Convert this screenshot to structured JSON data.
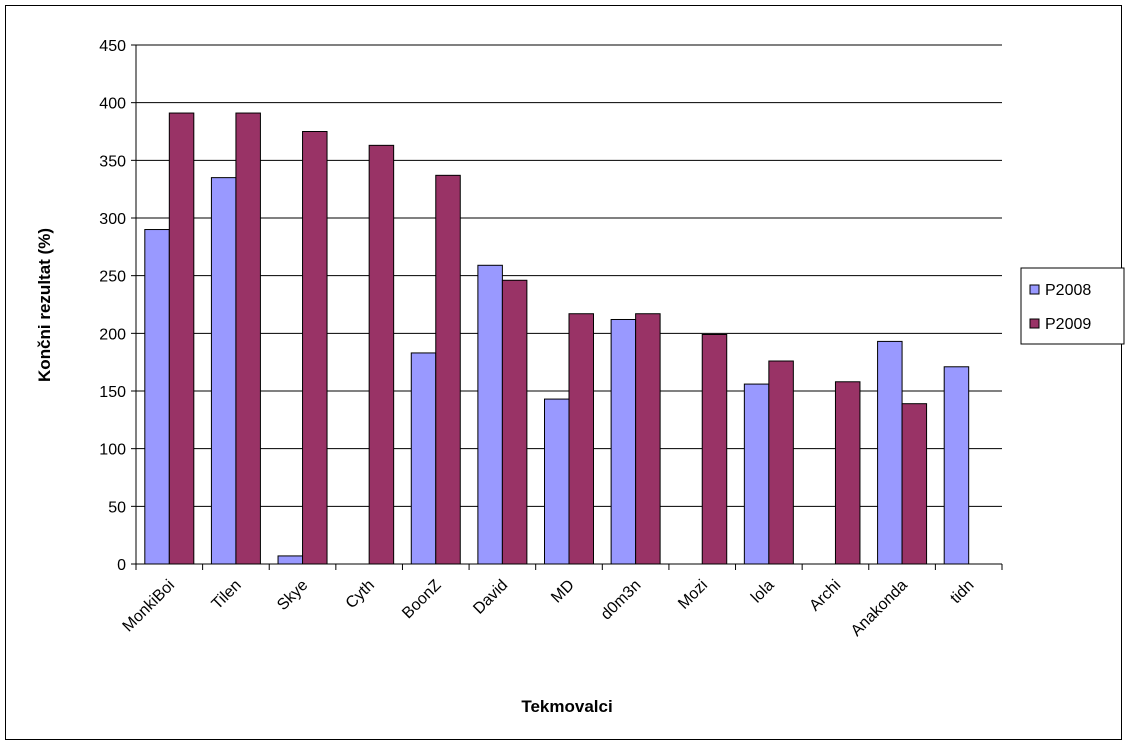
{
  "chart_data": {
    "type": "bar",
    "title": "",
    "xlabel": "Tekmovalci",
    "ylabel": "Končni rezultat (%)",
    "ylim": [
      0,
      450
    ],
    "yticks": [
      0,
      50,
      100,
      150,
      200,
      250,
      300,
      350,
      400,
      450
    ],
    "grid": true,
    "legend_position": "right",
    "categories": [
      "MonkiBoi",
      "Tilen",
      "Skye",
      "Cyth",
      "BoonZ",
      "David",
      "MD",
      "d0m3n",
      "Mozi",
      "lola",
      "Archi",
      "Anakonda",
      "tidn"
    ],
    "series": [
      {
        "name": "P2008",
        "color": "#9999ff",
        "values": [
          290,
          335,
          7,
          0,
          183,
          259,
          143,
          212,
          0,
          156,
          0,
          193,
          171
        ]
      },
      {
        "name": "P2009",
        "color": "#993366",
        "values": [
          391,
          391,
          375,
          363,
          337,
          246,
          217,
          217,
          199,
          176,
          158,
          139,
          0
        ]
      }
    ]
  }
}
